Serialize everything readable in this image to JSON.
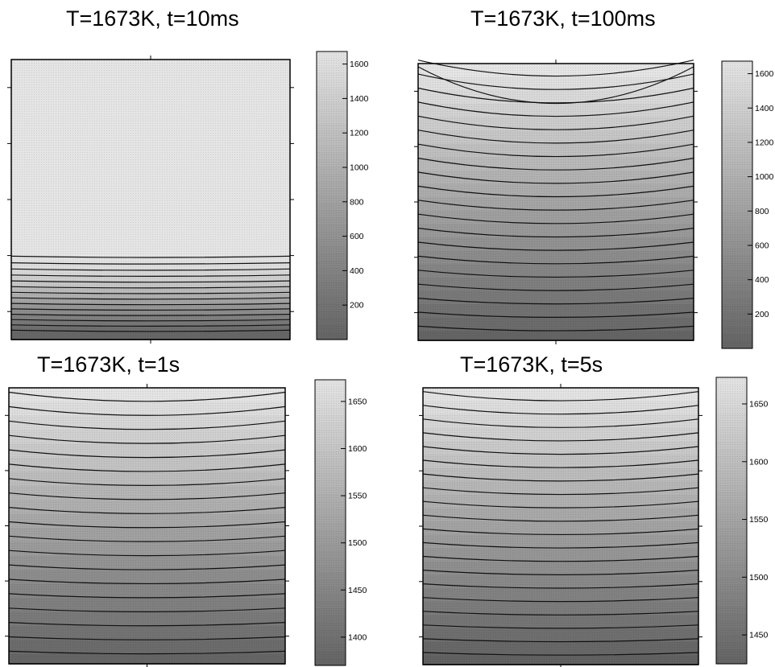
{
  "figure": {
    "colors": {
      "light": "#e4e4e4",
      "dark": "#5e5e5e",
      "contour": "#111111",
      "frame": "#000000"
    }
  },
  "chart_data": [
    {
      "type": "heatmap",
      "title": "T=1673K, t=10ms",
      "colorbar": {
        "min": 0,
        "max": 1673,
        "ticks": [
          200,
          400,
          600,
          800,
          1000,
          1200,
          1400,
          1600
        ]
      },
      "contour_levels": [
        1673,
        1640,
        1580,
        1500,
        1400,
        1280,
        1150,
        1000,
        850,
        700,
        560,
        430,
        310,
        200,
        100
      ],
      "grid": false
    },
    {
      "type": "heatmap",
      "title": "T=1673K, t=100ms",
      "colorbar": {
        "min": 0,
        "max": 1673,
        "ticks": [
          200,
          400,
          600,
          800,
          1000,
          1200,
          1400,
          1600
        ]
      },
      "contour_levels": [
        1673,
        1600,
        1520,
        1440,
        1360,
        1280,
        1200,
        1120,
        1040,
        960,
        880,
        800,
        720,
        640,
        560,
        480,
        400,
        320,
        240,
        160,
        80
      ],
      "grid": false
    },
    {
      "type": "heatmap",
      "title": "T=1673K, t=1s",
      "colorbar": {
        "min": 1370,
        "max": 1673,
        "ticks": [
          1400,
          1450,
          1500,
          1550,
          1600,
          1650
        ]
      },
      "contour_levels": [
        1670,
        1655,
        1640,
        1625,
        1610,
        1595,
        1580,
        1565,
        1550,
        1535,
        1520,
        1505,
        1490,
        1475,
        1460,
        1445,
        1430,
        1415,
        1400,
        1385
      ],
      "grid": false
    },
    {
      "type": "heatmap",
      "title": "T=1673K, t=5s",
      "colorbar": {
        "min": 1425,
        "max": 1673,
        "ticks": [
          1450,
          1500,
          1550,
          1600,
          1650
        ]
      },
      "contour_levels": [
        1670,
        1658,
        1646,
        1634,
        1622,
        1610,
        1598,
        1586,
        1574,
        1562,
        1550,
        1538,
        1526,
        1514,
        1502,
        1490,
        1478,
        1466,
        1454,
        1442,
        1430
      ],
      "grid": false
    }
  ]
}
